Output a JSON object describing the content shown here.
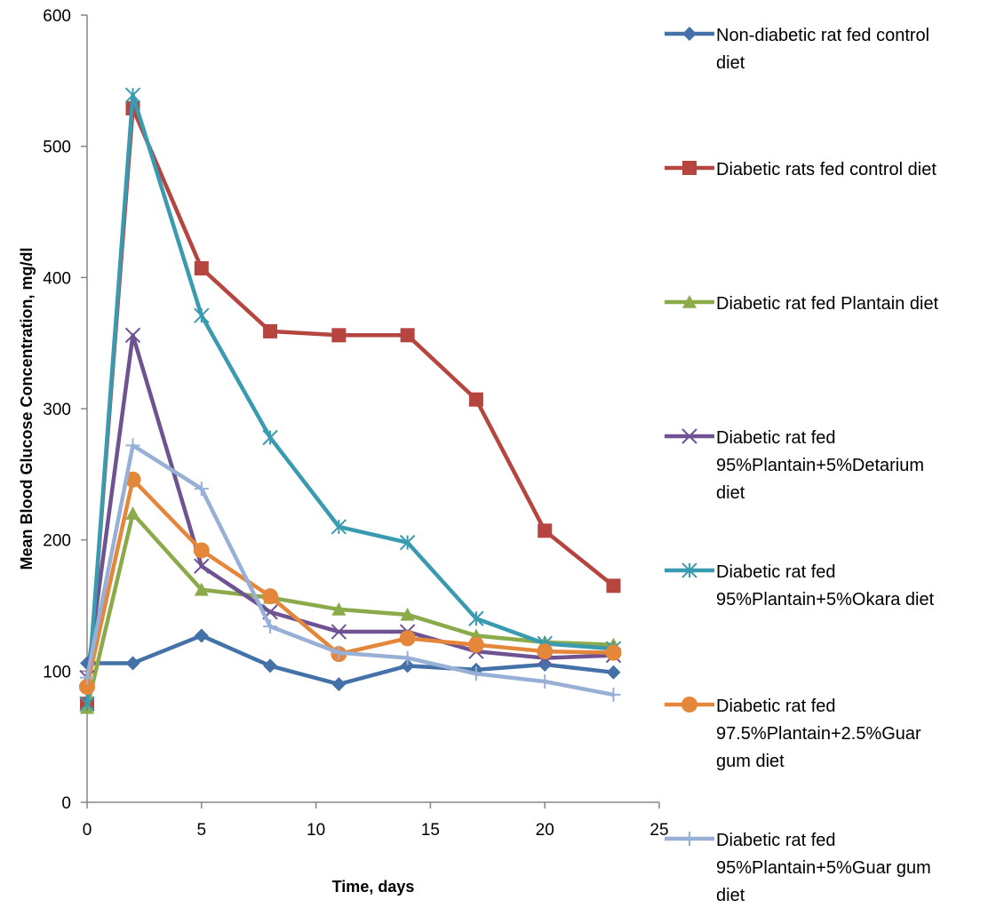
{
  "chart_data": {
    "type": "line",
    "title": "",
    "xlabel": "Time, days",
    "ylabel": "Mean Blood Glucose Concentration, mg/dl",
    "xlim": [
      0,
      25
    ],
    "ylim": [
      0,
      600
    ],
    "xticks": [
      0,
      5,
      10,
      15,
      20,
      25
    ],
    "yticks": [
      0,
      100,
      200,
      300,
      400,
      500,
      600
    ],
    "grid": false,
    "legend_position": "right",
    "x": [
      0,
      2,
      5,
      8,
      11,
      14,
      17,
      20,
      23
    ],
    "series": [
      {
        "name": "Non-diabetic rat fed control diet",
        "legend_lines": [
          "Non-diabetic rat fed control",
          "diet"
        ],
        "color": "#4472A8",
        "marker": "diamond",
        "values": [
          106,
          106,
          127,
          104,
          90,
          104,
          101,
          105,
          99
        ]
      },
      {
        "name": "Diabetic rats fed control diet",
        "legend_lines": [
          "Diabetic rats fed control diet"
        ],
        "color": "#B6443F",
        "marker": "square",
        "values": [
          75,
          529,
          407,
          359,
          356,
          356,
          307,
          207,
          165
        ]
      },
      {
        "name": "Diabetic rat fed Plantain diet",
        "legend_lines": [
          "Diabetic rat fed Plantain diet"
        ],
        "color": "#8BAA4A",
        "marker": "triangle",
        "values": [
          72,
          220,
          162,
          156,
          147,
          143,
          127,
          122,
          120
        ]
      },
      {
        "name": "Diabetic rat fed 95%Plantain+5%Detarium diet",
        "legend_lines": [
          "Diabetic rat fed",
          "95%Plantain+5%Detarium",
          "diet"
        ],
        "color": "#6E5292",
        "marker": "x",
        "values": [
          95,
          356,
          180,
          145,
          130,
          130,
          115,
          110,
          112
        ]
      },
      {
        "name": "Diabetic rat fed 95%Plantain+5%Okara diet",
        "legend_lines": [
          "Diabetic rat fed",
          "95%Plantain+5%Okara diet"
        ],
        "color": "#3A9BB0",
        "marker": "star",
        "values": [
          75,
          539,
          371,
          278,
          210,
          198,
          140,
          121,
          117
        ]
      },
      {
        "name": "Diabetic rat fed 97.5%Plantain+2.5%Guar gum diet",
        "legend_lines": [
          "Diabetic rat fed",
          "97.5%Plantain+2.5%Guar",
          "gum diet"
        ],
        "color": "#E5873A",
        "marker": "circle",
        "values": [
          88,
          246,
          192,
          157,
          113,
          125,
          120,
          115,
          114
        ]
      },
      {
        "name": "Diabetic rat fed 95%Plantain+5%Guar gum diet",
        "legend_lines": [
          "Diabetic rat fed",
          "95%Plantain+5%Guar gum",
          "diet"
        ],
        "color": "#98B0D6",
        "marker": "plus",
        "values": [
          95,
          272,
          239,
          134,
          114,
          110,
          98,
          92,
          82
        ]
      }
    ]
  }
}
